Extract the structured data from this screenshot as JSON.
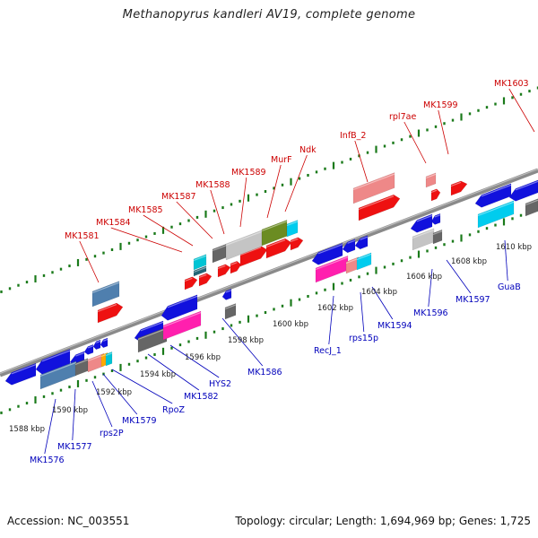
{
  "title": "Methanopyrus kandleri AV19, complete genome",
  "footer": {
    "accession": "Accession: NC_003551",
    "summary": "Topology: circular; Length: 1,694,969 bp; Genes: 1,725"
  },
  "colors": {
    "backbone": "#8a8a8a",
    "ticks": "#1a7a1a",
    "forward_genes": "#ee1111",
    "reverse_genes": "#1111dd",
    "forward_label": "#cc0000",
    "reverse_label": "#0000bb",
    "scale_label": "#222222"
  },
  "scale_labels": [
    "1588 kbp",
    "1590 kbp",
    "1592 kbp",
    "1594 kbp",
    "1596 kbp",
    "1598 kbp",
    "1600 kbp",
    "1602 kbp",
    "1604 kbp",
    "1606 kbp",
    "1608 kbp",
    "1610 kbp"
  ],
  "forward_labels": [
    "MK1581",
    "MK1584",
    "MK1585",
    "MK1587",
    "MK1588",
    "MK1589",
    "MurF",
    "Ndk",
    "InfB_2",
    "rpl7ae",
    "MK1599",
    "MK1603"
  ],
  "reverse_labels": [
    "MK1576",
    "MK1577",
    "rps2P",
    "MK1579",
    "RpoZ",
    "MK1582",
    "HYS2",
    "MK1586",
    "RecJ_1",
    "rps15p",
    "MK1594",
    "MK1596",
    "MK1597",
    "GuaB"
  ]
}
